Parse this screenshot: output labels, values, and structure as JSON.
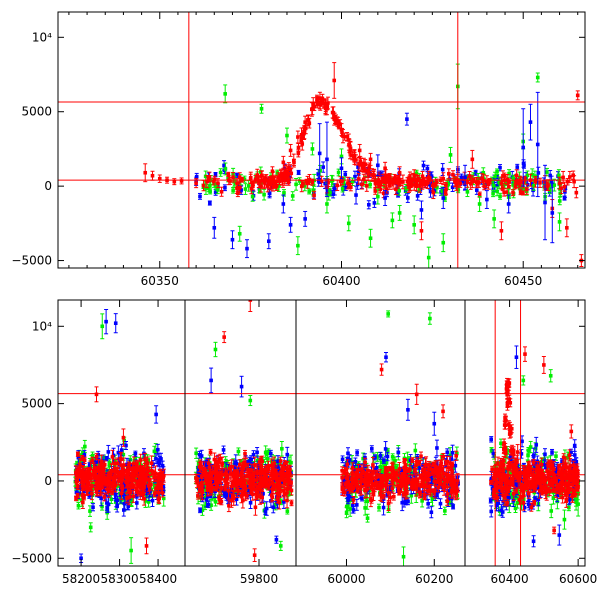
{
  "chart_data": [
    {
      "type": "scatter",
      "panel": "top",
      "xlim": [
        60322,
        60467
      ],
      "ylim": [
        -5500,
        11700
      ],
      "xticks": [
        {
          "value": 60350,
          "label": "60350"
        },
        {
          "value": 60400,
          "label": "60400"
        },
        {
          "value": 60450,
          "label": "60450"
        }
      ],
      "yticks": [
        {
          "value": -5000,
          "label": "−5000"
        },
        {
          "value": 0,
          "label": "0"
        },
        {
          "value": 5000,
          "label": "5000"
        },
        {
          "value": 10000,
          "label": "10⁴"
        }
      ],
      "hlines": [
        400,
        5650
      ],
      "vlines": [
        60358,
        60432
      ],
      "series": [
        {
          "color": "#ff0000",
          "points": [
            [
              60346,
              900,
              600
            ],
            [
              60348,
              700,
              300
            ],
            [
              60350,
              500,
              250
            ],
            [
              60352,
              400,
              200
            ],
            [
              60354,
              300,
              200
            ],
            [
              60356,
              350,
              200
            ],
            [
              60360,
              200,
              300
            ],
            [
              60363,
              300,
              400
            ],
            [
              60366,
              200,
              300
            ],
            [
              60369,
              400,
              300
            ],
            [
              60372,
              600,
              300
            ],
            [
              60375,
              500,
              300
            ],
            [
              60378,
              700,
              300
            ],
            [
              60381,
              1000,
              300
            ],
            [
              60384,
              1600,
              400
            ],
            [
              60386,
              2400,
              400
            ],
            [
              60388,
              3300,
              400
            ],
            [
              60390,
              4300,
              400
            ],
            [
              60392,
              5200,
              400
            ],
            [
              60394,
              5600,
              400
            ],
            [
              60396,
              5200,
              400
            ],
            [
              60398,
              4500,
              400
            ],
            [
              60400,
              3800,
              400
            ],
            [
              60402,
              3100,
              400
            ],
            [
              60405,
              2400,
              400
            ],
            [
              60408,
              1800,
              400
            ],
            [
              60412,
              1200,
              400
            ],
            [
              60416,
              900,
              400
            ],
            [
              60420,
              700,
              400
            ],
            [
              60424,
              600,
              400
            ],
            [
              60428,
              500,
              400
            ],
            [
              60432,
              400,
              400
            ],
            [
              60436,
              300,
              400
            ],
            [
              60440,
              300,
              400
            ],
            [
              60444,
              200,
              400
            ],
            [
              60448,
              300,
              400
            ],
            [
              60452,
              400,
              400
            ],
            [
              60456,
              300,
              400
            ],
            [
              60460,
              200,
              400
            ],
            [
              60464,
              300,
              400
            ],
            [
              60398,
              7100,
              1200
            ],
            [
              60436,
              1800,
              600
            ],
            [
              60444,
              -3000,
              600
            ],
            [
              60458,
              -1500,
              600
            ],
            [
              60462,
              -2800,
              600
            ],
            [
              60465,
              6100,
              300
            ],
            [
              60466,
              -5000,
              400
            ],
            [
              60422,
              -3000,
              600
            ]
          ]
        },
        {
          "color": "#00ee00",
          "points": [
            [
              60368,
              6200,
              600
            ],
            [
              60378,
              5200,
              300
            ],
            [
              60385,
              3400,
              500
            ],
            [
              60392,
              2500,
              400
            ],
            [
              60400,
              2000,
              500
            ],
            [
              60396,
              -1200,
              600
            ],
            [
              60402,
              -2500,
              500
            ],
            [
              60408,
              -3500,
              600
            ],
            [
              60414,
              -2300,
              500
            ],
            [
              60420,
              -2600,
              600
            ],
            [
              60424,
              -4800,
              700
            ],
            [
              60428,
              -3800,
              600
            ],
            [
              60432,
              6700,
              1500
            ],
            [
              60438,
              -1200,
              500
            ],
            [
              60442,
              -2200,
              600
            ],
            [
              60446,
              -700,
              500
            ],
            [
              60450,
              3000,
              500
            ],
            [
              60454,
              7300,
              300
            ],
            [
              60460,
              -2400,
              600
            ],
            [
              60372,
              -3200,
              500
            ],
            [
              60388,
              -4000,
              600
            ],
            [
              60410,
              -700,
              500
            ],
            [
              60416,
              -1800,
              500
            ],
            [
              60430,
              2100,
              500
            ]
          ]
        },
        {
          "color": "#0000ff",
          "points": [
            [
              60365,
              -2800,
              700
            ],
            [
              60370,
              -3600,
              600
            ],
            [
              60374,
              -4200,
              600
            ],
            [
              60380,
              -3700,
              500
            ],
            [
              60386,
              -2600,
              500
            ],
            [
              60390,
              -2200,
              500
            ],
            [
              60394,
              2200,
              2000
            ],
            [
              60396,
              1800,
              2500
            ],
            [
              60400,
              1200,
              700
            ],
            [
              60404,
              -600,
              600
            ],
            [
              60412,
              -800,
              500
            ],
            [
              60418,
              4500,
              400
            ],
            [
              60422,
              -1600,
              600
            ],
            [
              60428,
              -800,
              700
            ],
            [
              60434,
              600,
              800
            ],
            [
              60440,
              -900,
              600
            ],
            [
              60446,
              -1200,
              600
            ],
            [
              60450,
              2600,
              2600
            ],
            [
              60452,
              4300,
              1200
            ],
            [
              60454,
              2800,
              3500
            ],
            [
              60456,
              -1100,
              2500
            ],
            [
              60458,
              -1800,
              2000
            ],
            [
              60384,
              -1200,
              600
            ],
            [
              60410,
              1400,
              700
            ]
          ]
        }
      ]
    },
    {
      "type": "scatter",
      "panel": "bottom",
      "segments": [
        {
          "xlim": [
            58140,
            58470
          ],
          "xticks": [
            {
              "value": 58200,
              "label": "58200"
            },
            {
              "value": 58300,
              "label": "58300"
            },
            {
              "value": 58400,
              "label": "58400"
            }
          ]
        },
        {
          "xlim": [
            59630,
            59885
          ],
          "xticks": [
            {
              "value": 59800,
              "label": "59800"
            }
          ]
        },
        {
          "xlim": [
            59885,
            60270
          ],
          "xticks": [
            {
              "value": 60000,
              "label": "60000"
            },
            {
              "value": 60200,
              "label": "60200"
            }
          ]
        },
        {
          "xlim": [
            60270,
            60620
          ],
          "xticks": [
            {
              "value": 60400,
              "label": "60400"
            },
            {
              "value": 60600,
              "label": "60600"
            }
          ]
        }
      ],
      "ylim": [
        -5500,
        11700
      ],
      "yticks": [
        {
          "value": -5000,
          "label": "−5000"
        },
        {
          "value": 0,
          "label": "0"
        },
        {
          "value": 5000,
          "label": "5000"
        },
        {
          "value": 10000,
          "label": "10⁴"
        }
      ],
      "hlines": [
        400,
        5650
      ],
      "vlines": [
        60358,
        60432
      ],
      "clusters": [
        {
          "from": 58185,
          "to": 58415
        },
        {
          "from": 59655,
          "to": 59875
        },
        {
          "from": 59990,
          "to": 60255
        },
        {
          "from": 60345,
          "to": 60600
        }
      ],
      "flare": [
        [
          60380,
          1000
        ],
        [
          60385,
          2200
        ],
        [
          60390,
          4000
        ],
        [
          60394,
          5800
        ],
        [
          60396,
          6200
        ],
        [
          60398,
          5000
        ],
        [
          60402,
          3200
        ],
        [
          60408,
          1800
        ],
        [
          60414,
          900
        ],
        [
          60420,
          500
        ]
      ],
      "outliers": [
        {
          "color": "#0000ff",
          "points": [
            [
              58265,
              10300
            ],
            [
              58290,
              10200
            ],
            [
              58200,
              -5000
            ],
            [
              58395,
              4300
            ],
            [
              59690,
              6500
            ],
            [
              59760,
              6100
            ],
            [
              59840,
              -3800
            ],
            [
              60090,
              8000
            ],
            [
              60140,
              4600
            ],
            [
              60200,
              3700
            ],
            [
              60420,
              8000
            ],
            [
              60470,
              -3900
            ],
            [
              60545,
              -3500
            ]
          ]
        },
        {
          "color": "#00ee00",
          "points": [
            [
              58255,
              10000
            ],
            [
              58225,
              -3000
            ],
            [
              58330,
              -4500
            ],
            [
              59700,
              8500
            ],
            [
              59780,
              5200
            ],
            [
              59850,
              -4200
            ],
            [
              60095,
              10800
            ],
            [
              60190,
              10500
            ],
            [
              60130,
              -4900
            ],
            [
              60440,
              6500
            ],
            [
              60520,
              6800
            ],
            [
              60560,
              -2500
            ],
            [
              60600,
              -1500
            ]
          ]
        },
        {
          "color": "#ff0000",
          "points": [
            [
              58240,
              5600
            ],
            [
              58310,
              2800
            ],
            [
              58370,
              -4200
            ],
            [
              59780,
              11700
            ],
            [
              59720,
              9300
            ],
            [
              59790,
              -4800
            ],
            [
              60080,
              7200
            ],
            [
              60160,
              5600
            ],
            [
              60220,
              4500
            ],
            [
              60445,
              8200
            ],
            [
              60500,
              7500
            ],
            [
              60530,
              -3200
            ],
            [
              60580,
              3200
            ]
          ]
        }
      ]
    }
  ]
}
